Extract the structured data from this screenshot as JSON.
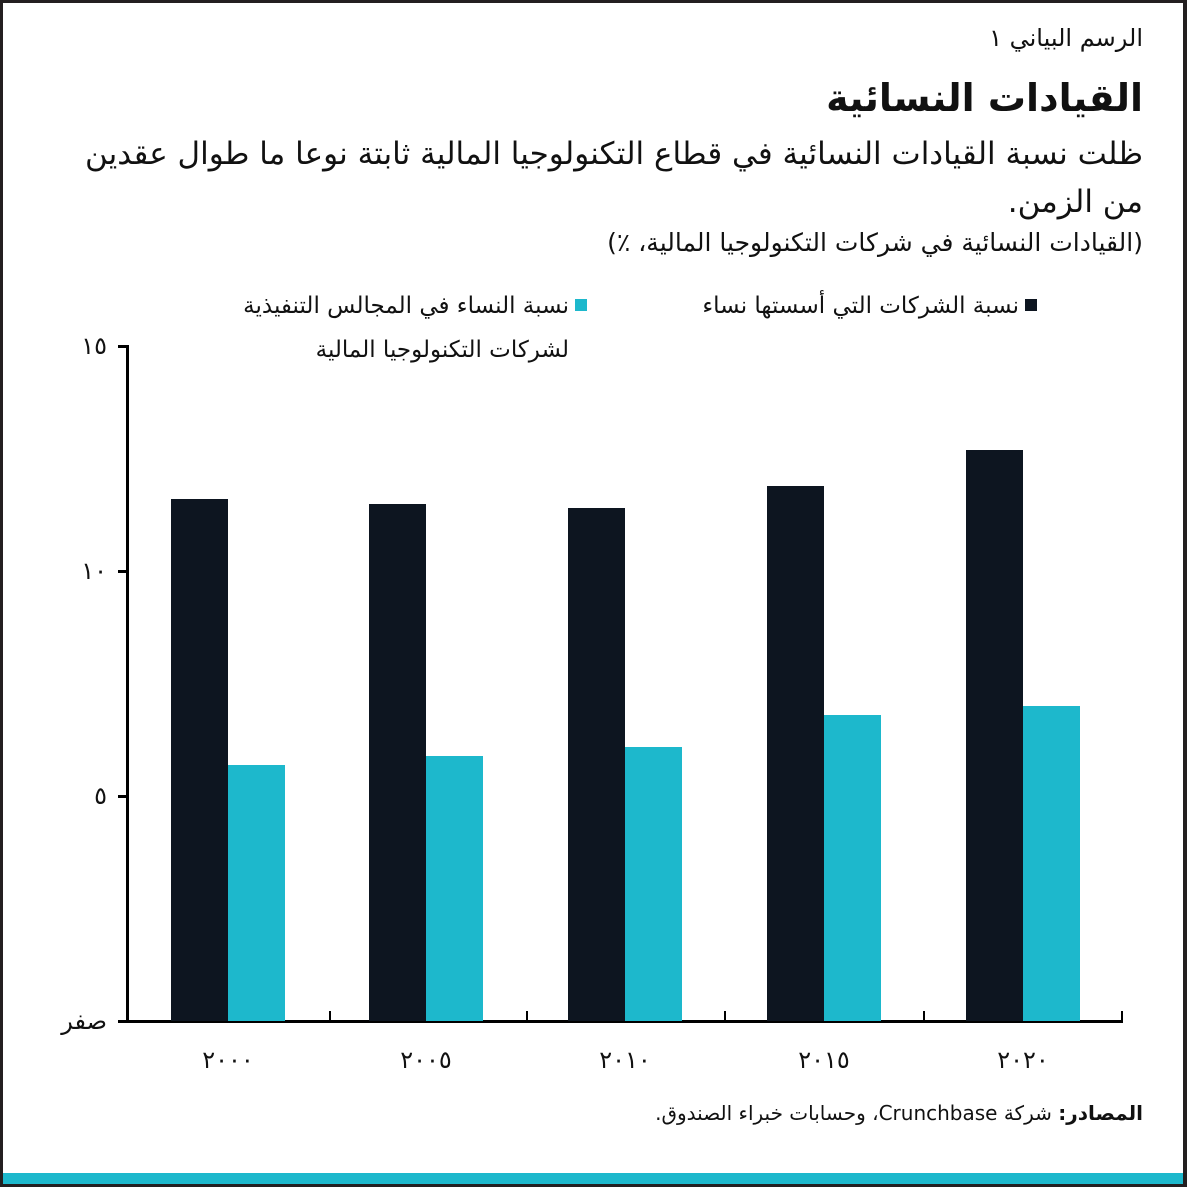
{
  "header": {
    "kicker": "الرسم البياني ١",
    "title": "القيادات النسائية",
    "subtitle": "ظلت نسبة القيادات النسائية في قطاع التكنولوجيا المالية ثابتة نوعا ما طوال عقدين من الزمن.",
    "unit_note": "(القيادات النسائية في شركات التكنولوجيا المالية، ٪)"
  },
  "legend": [
    {
      "label": "نسبة الشركات التي أسستها نساء",
      "color": "#0d1520"
    },
    {
      "label": "نسبة النساء في المجالس التنفيذية\nلشركات التكنولوجيا المالية",
      "color": "#1db8cc"
    }
  ],
  "axis": {
    "y_ticks": [
      {
        "value": 15,
        "label": "١٥"
      },
      {
        "value": 10,
        "label": "١٠"
      },
      {
        "value": 5,
        "label": "٥"
      },
      {
        "value": 0,
        "label": "صفر"
      }
    ]
  },
  "source": {
    "label": "المصادر:",
    "text": " شركة Crunchbase، وحسابات خبراء الصندوق."
  },
  "colors": {
    "dark": "#0d1520",
    "teal": "#1db8cc",
    "frame": "#231f20"
  },
  "chart_data": {
    "type": "bar",
    "title": "القيادات النسائية",
    "subtitle": "ظلت نسبة القيادات النسائية في قطاع التكنولوجيا المالية ثابتة نوعا ما طوال عقدين من الزمن.",
    "xlabel": "",
    "ylabel": "(القيادات النسائية في شركات التكنولوجيا المالية، ٪)",
    "categories": [
      "٢٠٠٠",
      "٢٠٠٥",
      "٢٠١٠",
      "٢٠١٥",
      "٢٠٢٠"
    ],
    "x": [
      2000,
      2005,
      2010,
      2015,
      2020
    ],
    "series": [
      {
        "name": "نسبة الشركات التي أسستها نساء",
        "color": "#0d1520",
        "values": [
          11.6,
          11.5,
          11.4,
          11.9,
          12.7
        ]
      },
      {
        "name": "نسبة النساء في المجالس التنفيذية لشركات التكنولوجيا المالية",
        "color": "#1db8cc",
        "values": [
          5.7,
          5.9,
          6.1,
          6.8,
          7.0
        ]
      }
    ],
    "ylim": [
      0,
      15
    ],
    "yticks": [
      0,
      5,
      10,
      15
    ],
    "ytick_labels": [
      "صفر",
      "٥",
      "١٠",
      "١٥"
    ],
    "grid": false,
    "legend_position": "top"
  }
}
